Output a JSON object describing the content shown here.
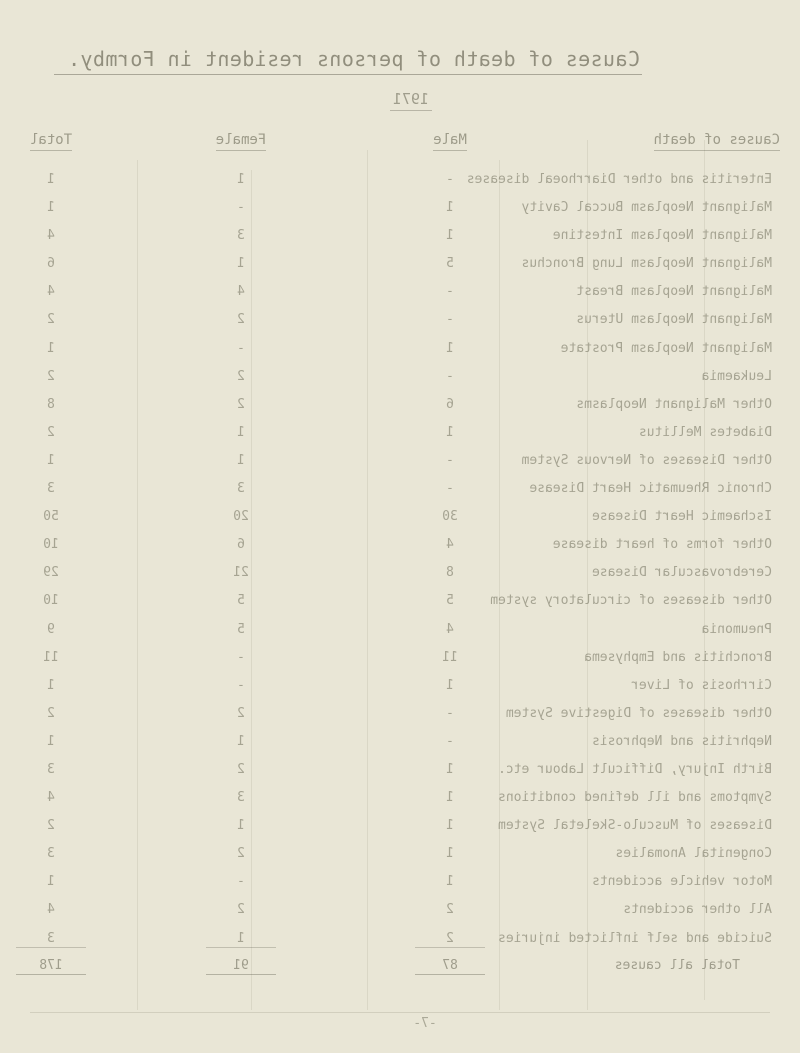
{
  "page": {
    "title": "Causes of death of persons resident in Formby.",
    "year": "1971",
    "page_number": "-7-"
  },
  "table": {
    "cause_header": "Causes of death",
    "columns": {
      "male": "Male",
      "female": "Female",
      "total": "Total"
    },
    "rows": [
      {
        "label": "Enteritis and other Diarrhoeal diseases",
        "male": "-",
        "female": "1",
        "total": "1"
      },
      {
        "label": "Malignant Neoplasm Buccal Cavity",
        "male": "1",
        "female": "-",
        "total": "1"
      },
      {
        "label": "Malignant Neoplasm Intestine",
        "male": "1",
        "female": "3",
        "total": "4"
      },
      {
        "label": "Malignant Neoplasm Lung Bronchus",
        "male": "5",
        "female": "1",
        "total": "6"
      },
      {
        "label": "Malignant Neoplasm Breast",
        "male": "-",
        "female": "4",
        "total": "4"
      },
      {
        "label": "Malignant Neoplasm Uterus",
        "male": "-",
        "female": "2",
        "total": "2"
      },
      {
        "label": "Malignant Neoplasm Prostate",
        "male": "1",
        "female": "-",
        "total": "1"
      },
      {
        "label": "Leukaemia",
        "male": "-",
        "female": "2",
        "total": "2"
      },
      {
        "label": "Other Malignant Neoplasms",
        "male": "6",
        "female": "2",
        "total": "8"
      },
      {
        "label": "Diabetes Mellitus",
        "male": "1",
        "female": "1",
        "total": "2"
      },
      {
        "label": "Other Diseases of Nervous System",
        "male": "-",
        "female": "1",
        "total": "1"
      },
      {
        "label": "Chronic Rheumatic Heart Disease",
        "male": "-",
        "female": "3",
        "total": "3"
      },
      {
        "label": "Ischaemic Heart Disease",
        "male": "30",
        "female": "20",
        "total": "50"
      },
      {
        "label": "Other forms of heart disease",
        "male": "4",
        "female": "6",
        "total": "10"
      },
      {
        "label": "Cerebrovascular Disease",
        "male": "8",
        "female": "21",
        "total": "29"
      },
      {
        "label": "Other diseases of circulatory system",
        "male": "5",
        "female": "5",
        "total": "10"
      },
      {
        "label": "Pneumonia",
        "male": "4",
        "female": "5",
        "total": "9"
      },
      {
        "label": "Bronchitis and Emphysema",
        "male": "11",
        "female": "-",
        "total": "11"
      },
      {
        "label": "Cirrhosis of Liver",
        "male": "1",
        "female": "-",
        "total": "1"
      },
      {
        "label": "Other diseases of Digestive System",
        "male": "-",
        "female": "2",
        "total": "2"
      },
      {
        "label": "Nephritis and Nephrosis",
        "male": "-",
        "female": "1",
        "total": "1"
      },
      {
        "label": "Birth Injury, Difficult Labour etc.",
        "male": "1",
        "female": "2",
        "total": "3"
      },
      {
        "label": "Symptoms and ill defined conditions",
        "male": "1",
        "female": "3",
        "total": "4"
      },
      {
        "label": "Diseases of Musculo-Skeletal System",
        "male": "1",
        "female": "1",
        "total": "2"
      },
      {
        "label": "Congenital Anomalies",
        "male": "1",
        "female": "2",
        "total": "3"
      },
      {
        "label": "Motor vehicle accidents",
        "male": "1",
        "female": "-",
        "total": "1"
      },
      {
        "label": "All other accidents",
        "male": "2",
        "female": "2",
        "total": "4"
      },
      {
        "label": "Suicide and self inflicted injuries",
        "male": "2",
        "female": "1",
        "total": "3"
      }
    ],
    "total_row": {
      "label": "Total all causes",
      "male": "87",
      "female": "91",
      "total": "178"
    }
  },
  "colors": {
    "paper": "#e9e6d6",
    "ink": "#6f6d5b"
  }
}
